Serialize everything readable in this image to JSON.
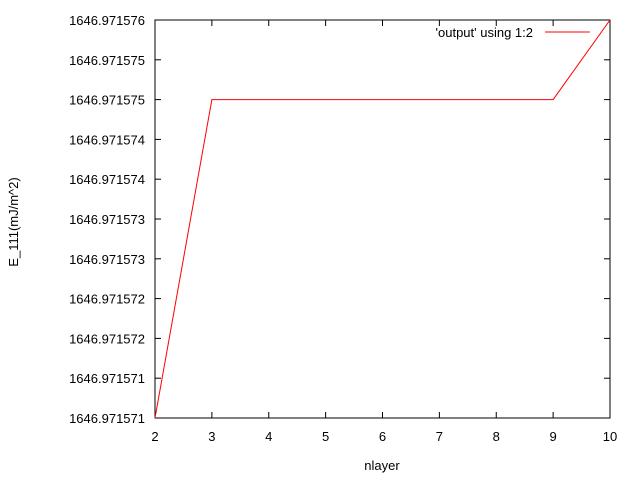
{
  "chart_data": {
    "type": "line",
    "xlabel": "nlayer",
    "ylabel": "E_111(mJ/m^2)",
    "xlim": [
      2,
      10
    ],
    "ylim": [
      1646.971571,
      1646.971576
    ],
    "x_ticks": [
      "2",
      "3",
      "4",
      "5",
      "6",
      "7",
      "8",
      "9",
      "10"
    ],
    "y_ticks": [
      "1646.971571",
      "1646.971571",
      "1646.971572",
      "1646.971572",
      "1646.971573",
      "1646.971573",
      "1646.971574",
      "1646.971574",
      "1646.971575",
      "1646.971575",
      "1646.971576"
    ],
    "grid": false,
    "legend_position": "top-right",
    "series": [
      {
        "name": "'output' using 1:2",
        "color": "#ff0000",
        "x": [
          2,
          3,
          9,
          10
        ],
        "y": [
          1646.971571,
          1646.971575,
          1646.971575,
          1646.971576
        ]
      }
    ]
  }
}
